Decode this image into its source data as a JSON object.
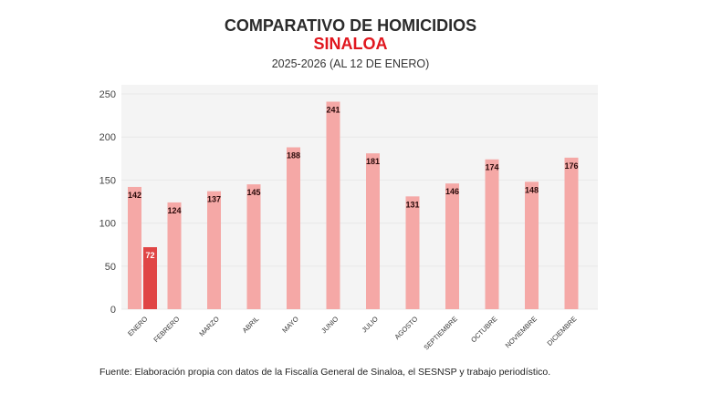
{
  "chart_data": {
    "type": "bar",
    "title": "COMPARATIVO DE HOMICIDIOS",
    "subtitle": "SINALOA",
    "period": "2025-2026 (AL 12 DE ENERO)",
    "categories": [
      "ENERO",
      "FEBRERO",
      "MARZO",
      "ABRIL",
      "MAYO",
      "JUNIO",
      "JULIO",
      "AGOSTO",
      "SEPTIEMBRE",
      "OCTUBRE",
      "NOVIEMBRE",
      "DICIEMBRE"
    ],
    "series": [
      {
        "values": [
          142,
          124,
          137,
          145,
          188,
          241,
          181,
          131,
          146,
          174,
          148,
          176
        ],
        "color": "#f5a8a6"
      },
      {
        "values": [
          72,
          null,
          null,
          null,
          null,
          null,
          null,
          null,
          null,
          null,
          null,
          null
        ],
        "color": "#e04545"
      }
    ],
    "ylim": [
      0,
      250
    ],
    "yticks": [
      0,
      50,
      100,
      150,
      200,
      250
    ],
    "grid": true,
    "xlabel": "",
    "ylabel": "",
    "source": "Fuente: Elaboración propia con datos de la Fiscalía General de Sinaloa, el SESNSP y trabajo periodístico."
  }
}
